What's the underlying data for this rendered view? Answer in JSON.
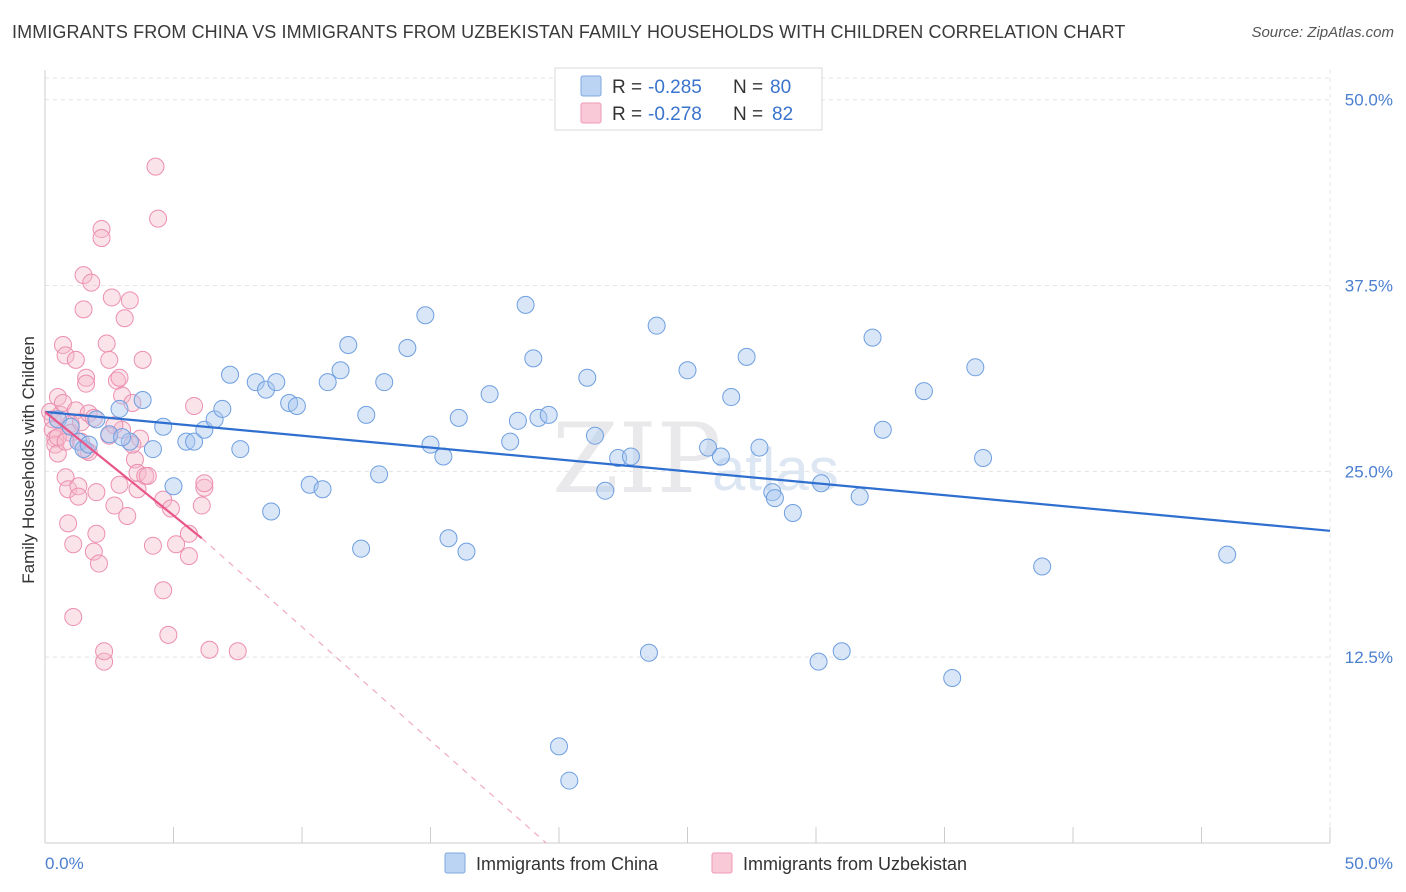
{
  "title": "IMMIGRANTS FROM CHINA VS IMMIGRANTS FROM UZBEKISTAN FAMILY HOUSEHOLDS WITH CHILDREN CORRELATION CHART",
  "source": "Source: ZipAtlas.com",
  "watermark": {
    "zip": "ZIP",
    "atlas": "atlas"
  },
  "legend": {
    "r_label": "R =",
    "n_label": "N =",
    "entries": [
      {
        "r": "-0.285",
        "n": "80",
        "color": "#a9c8f0"
      },
      {
        "r": "-0.278",
        "n": "82",
        "color": "#f6b8cb"
      }
    ]
  },
  "chart_data": {
    "type": "scatter",
    "title": "IMMIGRANTS FROM CHINA VS IMMIGRANTS FROM UZBEKISTAN FAMILY HOUSEHOLDS WITH CHILDREN CORRELATION CHART",
    "xlabel": "",
    "ylabel": "Family Households with Children",
    "xlim": [
      0,
      50
    ],
    "ylim": [
      0,
      52
    ],
    "x_tick_labels": [
      "0.0%",
      "50.0%"
    ],
    "y_tick_labels": [
      "12.5%",
      "25.0%",
      "37.5%",
      "50.0%"
    ],
    "y_ticks": [
      12.5,
      25.0,
      37.5,
      50.0
    ],
    "grid": true,
    "legend_position": "top-center",
    "series": [
      {
        "name": "Immigrants from China",
        "color": "#a9c8f0",
        "line_color": "#2f6fcf",
        "trend": {
          "x": [
            0,
            50
          ],
          "y": [
            29.0,
            21.0
          ]
        },
        "points": [
          [
            0.5,
            28.5
          ],
          [
            1,
            28.0
          ],
          [
            1.3,
            27.0
          ],
          [
            1.5,
            26.5
          ],
          [
            2.0,
            28.5
          ],
          [
            2.5,
            27.5
          ],
          [
            2.9,
            29.2
          ],
          [
            3.3,
            27.0
          ],
          [
            3.8,
            29.8
          ],
          [
            4.2,
            26.5
          ],
          [
            4.6,
            28.0
          ],
          [
            5.0,
            24.0
          ],
          [
            5.5,
            27.0
          ],
          [
            5.8,
            27.0
          ],
          [
            6.2,
            27.8
          ],
          [
            6.6,
            28.5
          ],
          [
            6.9,
            29.2
          ],
          [
            7.2,
            31.5
          ],
          [
            7.6,
            26.5
          ],
          [
            8.2,
            31.0
          ],
          [
            8.6,
            30.5
          ],
          [
            8.8,
            22.3
          ],
          [
            9.0,
            31.0
          ],
          [
            9.5,
            29.6
          ],
          [
            9.8,
            29.4
          ],
          [
            10.3,
            24.1
          ],
          [
            10.8,
            23.8
          ],
          [
            11.0,
            31.0
          ],
          [
            11.5,
            31.8
          ],
          [
            11.8,
            33.5
          ],
          [
            12.3,
            19.8
          ],
          [
            12.5,
            28.8
          ],
          [
            13.0,
            24.8
          ],
          [
            13.2,
            31.0
          ],
          [
            14.1,
            33.3
          ],
          [
            14.8,
            35.5
          ],
          [
            15.0,
            26.8
          ],
          [
            15.5,
            26.0
          ],
          [
            15.7,
            20.5
          ],
          [
            16.1,
            28.6
          ],
          [
            16.4,
            19.6
          ],
          [
            17.3,
            30.2
          ],
          [
            18.1,
            27.0
          ],
          [
            18.4,
            28.4
          ],
          [
            18.7,
            36.2
          ],
          [
            19.0,
            32.6
          ],
          [
            19.2,
            28.6
          ],
          [
            19.6,
            28.8
          ],
          [
            20.0,
            6.5
          ],
          [
            20.4,
            4.2
          ],
          [
            21.1,
            31.3
          ],
          [
            21.4,
            27.4
          ],
          [
            21.8,
            23.7
          ],
          [
            22.3,
            25.9
          ],
          [
            22.8,
            26.0
          ],
          [
            23.5,
            12.8
          ],
          [
            23.8,
            34.8
          ],
          [
            25.0,
            31.8
          ],
          [
            25.8,
            26.6
          ],
          [
            26.3,
            26.0
          ],
          [
            26.7,
            30.0
          ],
          [
            27.3,
            32.7
          ],
          [
            27.8,
            26.6
          ],
          [
            28.3,
            23.6
          ],
          [
            28.4,
            23.2
          ],
          [
            29.1,
            22.2
          ],
          [
            30.1,
            12.2
          ],
          [
            30.2,
            24.2
          ],
          [
            31.0,
            12.9
          ],
          [
            31.7,
            23.3
          ],
          [
            32.2,
            34.0
          ],
          [
            32.6,
            27.8
          ],
          [
            34.2,
            30.4
          ],
          [
            35.3,
            11.1
          ],
          [
            36.2,
            32.0
          ],
          [
            36.5,
            25.9
          ],
          [
            38.8,
            18.6
          ],
          [
            46.0,
            19.4
          ],
          [
            1.7,
            26.8
          ],
          [
            3.0,
            27.3
          ]
        ]
      },
      {
        "name": "Immigrants from Uzbekistan",
        "color": "#f6b8cb",
        "line_color": "#e8578a",
        "trend": {
          "x": [
            0,
            6.1
          ],
          "y": [
            29.0,
            20.5
          ]
        },
        "trend_extension": {
          "x": [
            6.1,
            19.5
          ],
          "y": [
            20.5,
            0.0
          ]
        },
        "points": [
          [
            0.2,
            29.0
          ],
          [
            0.3,
            28.5
          ],
          [
            0.3,
            27.8
          ],
          [
            0.4,
            27.2
          ],
          [
            0.4,
            26.8
          ],
          [
            0.5,
            30.0
          ],
          [
            0.5,
            26.2
          ],
          [
            0.6,
            28.8
          ],
          [
            0.7,
            29.6
          ],
          [
            0.7,
            33.5
          ],
          [
            0.8,
            32.8
          ],
          [
            0.8,
            24.6
          ],
          [
            0.9,
            23.8
          ],
          [
            0.9,
            21.5
          ],
          [
            1.0,
            28.2
          ],
          [
            1.0,
            27.6
          ],
          [
            1.1,
            20.1
          ],
          [
            1.1,
            15.2
          ],
          [
            1.2,
            32.5
          ],
          [
            1.2,
            29.1
          ],
          [
            1.3,
            24.0
          ],
          [
            1.3,
            23.3
          ],
          [
            1.4,
            28.3
          ],
          [
            1.4,
            27.0
          ],
          [
            1.5,
            38.2
          ],
          [
            1.5,
            35.9
          ],
          [
            1.6,
            31.3
          ],
          [
            1.6,
            30.9
          ],
          [
            1.7,
            28.9
          ],
          [
            1.7,
            26.3
          ],
          [
            1.8,
            37.7
          ],
          [
            1.9,
            28.6
          ],
          [
            1.9,
            19.6
          ],
          [
            2.0,
            23.6
          ],
          [
            2.0,
            20.8
          ],
          [
            2.1,
            18.8
          ],
          [
            2.2,
            41.3
          ],
          [
            2.2,
            40.7
          ],
          [
            2.3,
            12.2
          ],
          [
            2.3,
            12.9
          ],
          [
            2.4,
            33.6
          ],
          [
            2.5,
            32.5
          ],
          [
            2.5,
            27.4
          ],
          [
            2.6,
            36.7
          ],
          [
            2.7,
            22.7
          ],
          [
            2.8,
            31.1
          ],
          [
            2.9,
            31.3
          ],
          [
            2.9,
            24.1
          ],
          [
            3.0,
            30.1
          ],
          [
            3.0,
            27.8
          ],
          [
            3.1,
            35.3
          ],
          [
            3.2,
            22.0
          ],
          [
            3.3,
            36.5
          ],
          [
            3.4,
            29.6
          ],
          [
            3.5,
            25.8
          ],
          [
            3.6,
            24.9
          ],
          [
            3.6,
            23.8
          ],
          [
            3.7,
            27.2
          ],
          [
            3.8,
            32.5
          ],
          [
            3.9,
            24.7
          ],
          [
            4.0,
            24.7
          ],
          [
            4.2,
            20.0
          ],
          [
            4.3,
            45.5
          ],
          [
            4.4,
            42.0
          ],
          [
            4.6,
            23.1
          ],
          [
            4.6,
            17.0
          ],
          [
            4.8,
            14.0
          ],
          [
            4.9,
            22.5
          ],
          [
            5.1,
            20.1
          ],
          [
            5.6,
            20.8
          ],
          [
            5.6,
            19.3
          ],
          [
            5.8,
            29.4
          ],
          [
            6.1,
            22.7
          ],
          [
            6.2,
            23.9
          ],
          [
            6.2,
            24.2
          ],
          [
            6.4,
            13.0
          ],
          [
            7.5,
            12.9
          ],
          [
            0.5,
            27.3
          ],
          [
            0.8,
            27.0
          ],
          [
            1.6,
            26.4
          ],
          [
            2.7,
            28.1
          ],
          [
            3.4,
            26.8
          ]
        ]
      }
    ]
  }
}
